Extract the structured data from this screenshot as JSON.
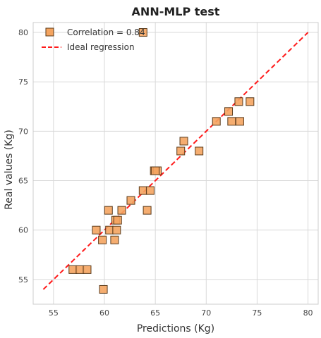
{
  "colors": {
    "marker_fill": "#f4a460",
    "marker_edge": "#5a3a1a",
    "ideal_line": "#ff1a1a",
    "grid": "#d9d9d9",
    "frame": "#cccccc"
  },
  "chart_data": {
    "type": "scatter",
    "title": "ANN-MLP test",
    "xlabel": "Predictions (Kg)",
    "ylabel": "Real values (Kg)",
    "xlim": [
      53,
      81
    ],
    "ylim": [
      52.5,
      81
    ],
    "xticks": [
      55,
      60,
      65,
      70,
      75,
      80
    ],
    "yticks": [
      55,
      60,
      65,
      70,
      75,
      80
    ],
    "grid": true,
    "legend_position": "top-left",
    "series": [
      {
        "name": "Correlation = 0.84",
        "marker": "square",
        "points": [
          [
            63.8,
            80
          ],
          [
            74.3,
            73
          ],
          [
            73.2,
            73
          ],
          [
            72.2,
            72
          ],
          [
            72.5,
            71
          ],
          [
            73.3,
            71
          ],
          [
            71.0,
            71
          ],
          [
            67.8,
            69
          ],
          [
            67.5,
            68
          ],
          [
            69.3,
            68
          ],
          [
            64.9,
            66
          ],
          [
            65.2,
            66
          ],
          [
            65.0,
            66
          ],
          [
            63.8,
            64
          ],
          [
            64.5,
            64
          ],
          [
            62.6,
            63
          ],
          [
            61.7,
            62
          ],
          [
            60.4,
            62
          ],
          [
            64.2,
            62
          ],
          [
            61.1,
            61
          ],
          [
            61.3,
            61
          ],
          [
            59.2,
            60
          ],
          [
            60.5,
            60
          ],
          [
            61.2,
            60
          ],
          [
            59.8,
            59
          ],
          [
            61.0,
            59
          ],
          [
            56.9,
            56
          ],
          [
            57.6,
            56
          ],
          [
            58.3,
            56
          ],
          [
            59.9,
            54
          ]
        ]
      },
      {
        "name": "Ideal regression",
        "style": "dashed-line",
        "points": [
          [
            54,
            54
          ],
          [
            80,
            80
          ]
        ]
      }
    ]
  }
}
